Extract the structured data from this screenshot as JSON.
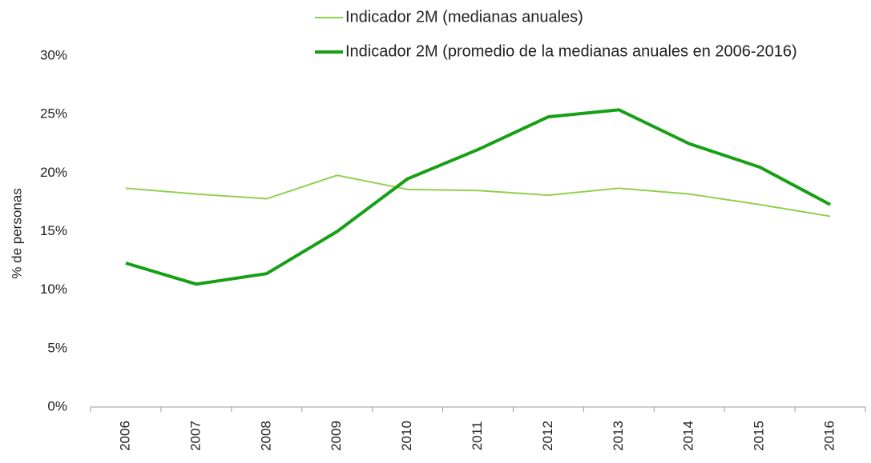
{
  "chart_data": {
    "type": "line",
    "y_label": "% de personas",
    "categories": [
      "2006",
      "2007",
      "2008",
      "2009",
      "2010",
      "2011",
      "2012",
      "2013",
      "2014",
      "2015",
      "2016"
    ],
    "series": [
      {
        "name": "Indicador 2M (medianas anuales)",
        "color": "#92d050",
        "width": 2,
        "values": [
          18.7,
          18.2,
          17.8,
          19.8,
          18.6,
          18.5,
          18.1,
          18.7,
          18.2,
          17.3,
          16.3
        ]
      },
      {
        "name": "Indicador 2M (promedio de la medianas anuales en 2006-2016)",
        "color": "#16a016",
        "width": 4,
        "values": [
          12.3,
          10.5,
          11.4,
          15.0,
          19.5,
          22.0,
          24.8,
          25.4,
          22.5,
          20.5,
          17.3
        ]
      }
    ],
    "ylim": [
      0,
      30
    ],
    "yticks": [
      {
        "value": 0,
        "label": "0%"
      },
      {
        "value": 5,
        "label": "5%"
      },
      {
        "value": 10,
        "label": "10%"
      },
      {
        "value": 15,
        "label": "15%"
      },
      {
        "value": 20,
        "label": "20%"
      },
      {
        "value": 25,
        "label": "25%"
      },
      {
        "value": 30,
        "label": "30%"
      }
    ],
    "grid": false,
    "legend": "top"
  }
}
